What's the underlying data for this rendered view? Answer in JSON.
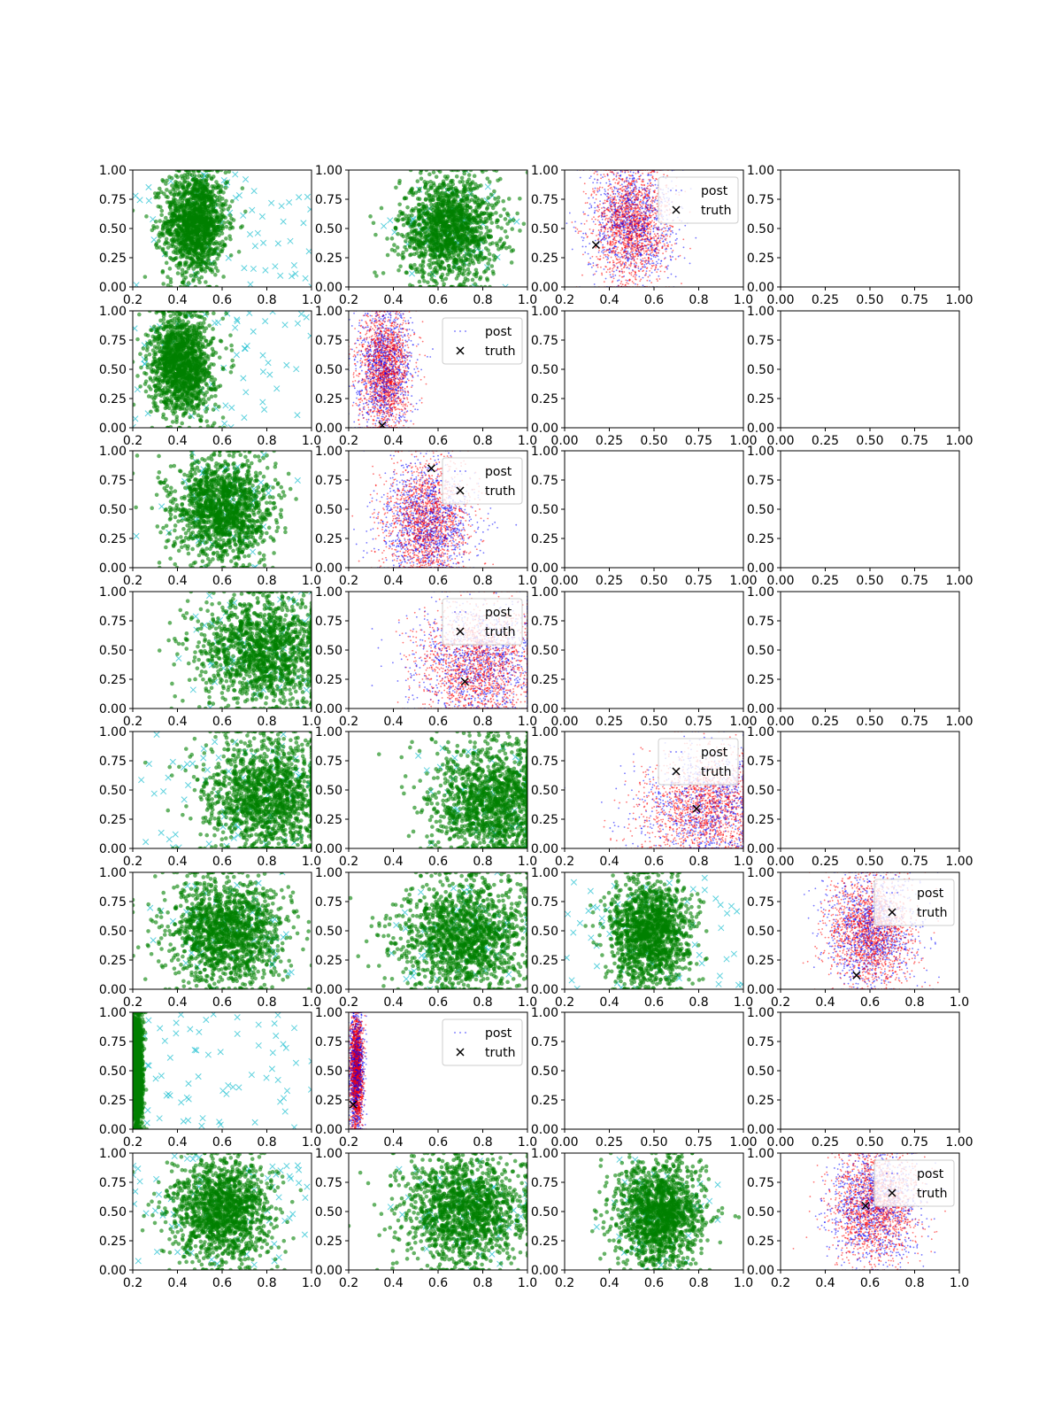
{
  "chart_data": {
    "type": "scatter",
    "layout": "8x4 subplot grid",
    "legend_labels": {
      "post": "post",
      "truth": "truth"
    },
    "legend_placement": "upper right",
    "colors": {
      "green_samples": "#008000",
      "cyan_markers": "#17becf",
      "post_red": "#ff0000",
      "post_blue": "#0000ff",
      "truth_marker": "#000000"
    },
    "y_ticks": [
      "0.00",
      "0.25",
      "0.50",
      "0.75",
      "1.00"
    ],
    "x_ticks_low": [
      "0.2",
      "0.4",
      "0.6",
      "0.8",
      "1.0"
    ],
    "x_ticks_unit": [
      "0.00",
      "0.25",
      "0.50",
      "0.75",
      "1.00"
    ],
    "panels": [
      [
        {
          "kind": "green",
          "xlim": [
            0.2,
            1.0
          ],
          "center": [
            0.48,
            0.55
          ],
          "spread": [
            0.07,
            0.22
          ],
          "cyan": "wide"
        },
        {
          "kind": "green",
          "xlim": [
            0.2,
            1.0
          ],
          "center": [
            0.65,
            0.5
          ],
          "spread": [
            0.11,
            0.22
          ],
          "cyan": "center"
        },
        {
          "kind": "post",
          "xlim": [
            0.2,
            1.0
          ],
          "center": [
            0.5,
            0.55
          ],
          "spread": [
            0.09,
            0.25
          ],
          "truth": [
            0.34,
            0.36
          ],
          "legend": true
        },
        {
          "kind": "empty",
          "xlim": [
            0.0,
            1.0
          ]
        }
      ],
      [
        {
          "kind": "green",
          "xlim": [
            0.2,
            1.0
          ],
          "center": [
            0.42,
            0.55
          ],
          "spread": [
            0.07,
            0.22
          ],
          "cyan": "wide"
        },
        {
          "kind": "post",
          "xlim": [
            0.2,
            1.0
          ],
          "center": [
            0.36,
            0.5
          ],
          "spread": [
            0.06,
            0.28
          ],
          "truth": [
            0.35,
            0.02
          ],
          "legend": true
        },
        {
          "kind": "empty",
          "xlim": [
            0.0,
            1.0
          ]
        },
        {
          "kind": "empty",
          "xlim": [
            0.0,
            1.0
          ]
        }
      ],
      [
        {
          "kind": "green",
          "xlim": [
            0.2,
            1.0
          ],
          "center": [
            0.6,
            0.5
          ],
          "spread": [
            0.11,
            0.22
          ],
          "cyan": "center"
        },
        {
          "kind": "post",
          "xlim": [
            0.2,
            1.0
          ],
          "center": [
            0.55,
            0.4
          ],
          "spread": [
            0.1,
            0.25
          ],
          "truth": [
            0.57,
            0.85
          ],
          "legend": true
        },
        {
          "kind": "empty",
          "xlim": [
            0.0,
            1.0
          ]
        },
        {
          "kind": "empty",
          "xlim": [
            0.0,
            1.0
          ]
        }
      ],
      [
        {
          "kind": "green",
          "xlim": [
            0.2,
            1.0
          ],
          "center": [
            0.78,
            0.5
          ],
          "spread": [
            0.15,
            0.24
          ],
          "cyan": "center"
        },
        {
          "kind": "post",
          "xlim": [
            0.2,
            1.0
          ],
          "center": [
            0.78,
            0.38
          ],
          "spread": [
            0.14,
            0.26
          ],
          "truth": [
            0.72,
            0.23
          ],
          "legend": true
        },
        {
          "kind": "empty",
          "xlim": [
            0.0,
            1.0
          ]
        },
        {
          "kind": "empty",
          "xlim": [
            0.0,
            1.0
          ]
        }
      ],
      [
        {
          "kind": "green",
          "xlim": [
            0.2,
            1.0
          ],
          "center": [
            0.8,
            0.45
          ],
          "spread": [
            0.14,
            0.25
          ],
          "cyan": "wide"
        },
        {
          "kind": "green",
          "xlim": [
            0.2,
            1.0
          ],
          "center": [
            0.85,
            0.4
          ],
          "spread": [
            0.14,
            0.25
          ],
          "cyan": "center"
        },
        {
          "kind": "post",
          "xlim": [
            0.2,
            1.0
          ],
          "center": [
            0.85,
            0.35
          ],
          "spread": [
            0.16,
            0.25
          ],
          "truth": [
            0.79,
            0.34
          ],
          "legend": true
        },
        {
          "kind": "empty",
          "xlim": [
            0.0,
            1.0
          ]
        }
      ],
      [
        {
          "kind": "green",
          "xlim": [
            0.2,
            1.0
          ],
          "center": [
            0.62,
            0.5
          ],
          "spread": [
            0.13,
            0.23
          ],
          "cyan": "center"
        },
        {
          "kind": "green",
          "xlim": [
            0.2,
            1.0
          ],
          "center": [
            0.72,
            0.45
          ],
          "spread": [
            0.15,
            0.24
          ],
          "cyan": "center"
        },
        {
          "kind": "green",
          "xlim": [
            0.2,
            1.0
          ],
          "center": [
            0.58,
            0.5
          ],
          "spread": [
            0.09,
            0.22
          ],
          "cyan": "wide"
        },
        {
          "kind": "post",
          "xlim": [
            0.2,
            1.0
          ],
          "center": [
            0.6,
            0.5
          ],
          "spread": [
            0.1,
            0.24
          ],
          "truth": [
            0.54,
            0.12
          ],
          "legend": true
        }
      ],
      [
        {
          "kind": "green",
          "xlim": [
            0.2,
            1.0
          ],
          "center": [
            0.22,
            0.5
          ],
          "spread": [
            0.012,
            0.27
          ],
          "cyan": "wide"
        },
        {
          "kind": "post",
          "xlim": [
            0.2,
            1.0
          ],
          "center": [
            0.235,
            0.5
          ],
          "spread": [
            0.015,
            0.27
          ],
          "truth": [
            0.22,
            0.21
          ],
          "legend": true
        },
        {
          "kind": "empty",
          "xlim": [
            0.0,
            1.0
          ]
        },
        {
          "kind": "empty",
          "xlim": [
            0.0,
            1.0
          ]
        }
      ],
      [
        {
          "kind": "green",
          "xlim": [
            0.2,
            1.0
          ],
          "center": [
            0.6,
            0.5
          ],
          "spread": [
            0.11,
            0.22
          ],
          "cyan": "wide"
        },
        {
          "kind": "green",
          "xlim": [
            0.2,
            1.0
          ],
          "center": [
            0.72,
            0.5
          ],
          "spread": [
            0.14,
            0.23
          ],
          "cyan": "center"
        },
        {
          "kind": "green",
          "xlim": [
            0.2,
            1.0
          ],
          "center": [
            0.62,
            0.48
          ],
          "spread": [
            0.1,
            0.22
          ],
          "cyan": "center"
        },
        {
          "kind": "post",
          "xlim": [
            0.2,
            1.0
          ],
          "center": [
            0.62,
            0.55
          ],
          "spread": [
            0.1,
            0.24
          ],
          "truth": [
            0.58,
            0.55
          ],
          "legend": true
        }
      ]
    ]
  }
}
